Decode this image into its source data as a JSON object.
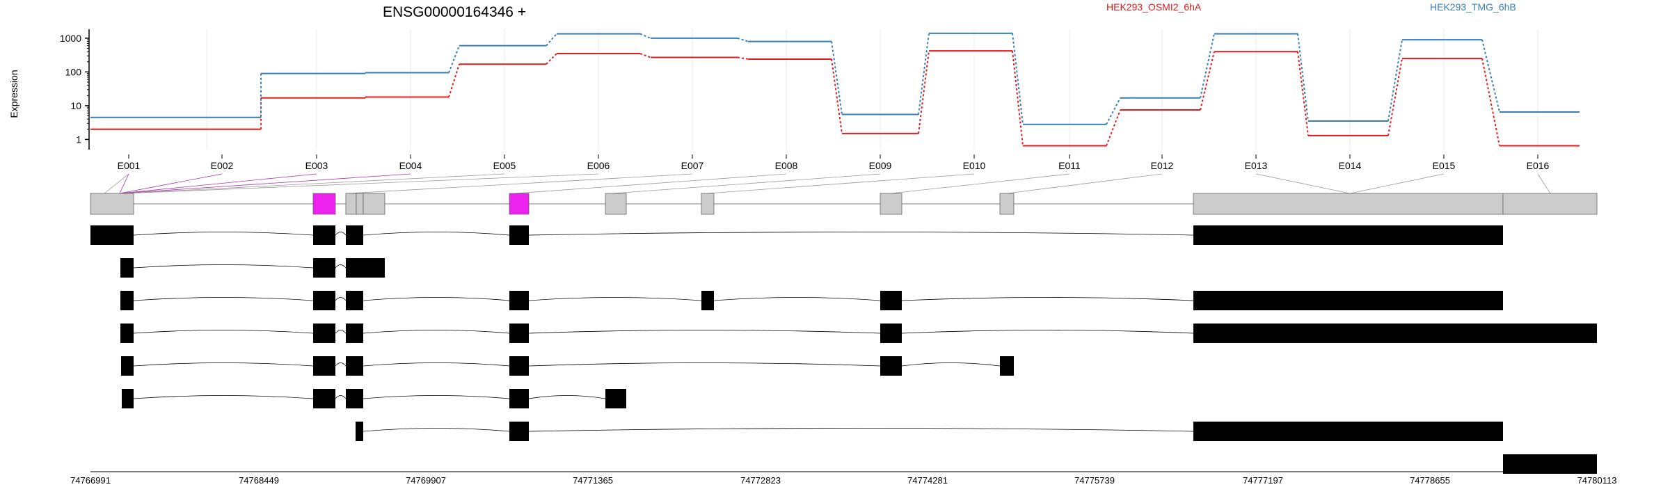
{
  "chart_data": {
    "type": "line",
    "title": "ENSG00000164346 +",
    "ylabel": "Expression",
    "yscale": "log",
    "yticks": [
      1,
      10,
      100,
      1000
    ],
    "ytick_labels": [
      "1",
      "10",
      "100",
      "1000"
    ],
    "categories": [
      "E001",
      "E002",
      "E003",
      "E004",
      "E005",
      "E006",
      "E007",
      "E008",
      "E009",
      "E010",
      "E011",
      "E012",
      "E013",
      "E014",
      "E015",
      "E016"
    ],
    "series": [
      {
        "name": "HEK293_OSMI2_6hA",
        "color": "#e41a1c",
        "values": [
          2,
          2,
          17,
          18,
          170,
          350,
          270,
          240,
          1.5,
          420,
          0.65,
          7.5,
          400,
          1.3,
          250,
          0.65
        ]
      },
      {
        "name": "HEK293_TMG_6hB",
        "color": "#377eb8",
        "values": [
          4.5,
          4.5,
          90,
          95,
          600,
          1350,
          1000,
          800,
          5.5,
          1400,
          2.8,
          17,
          1350,
          3.5,
          900,
          6.5
        ]
      }
    ],
    "grid": true,
    "legend": "top",
    "genomic_axis": {
      "tick_labels": [
        "74766991",
        "74768449",
        "74769907",
        "74771365",
        "74772823",
        "74774281",
        "74775739",
        "74777197",
        "74778655",
        "74780113"
      ]
    }
  }
}
